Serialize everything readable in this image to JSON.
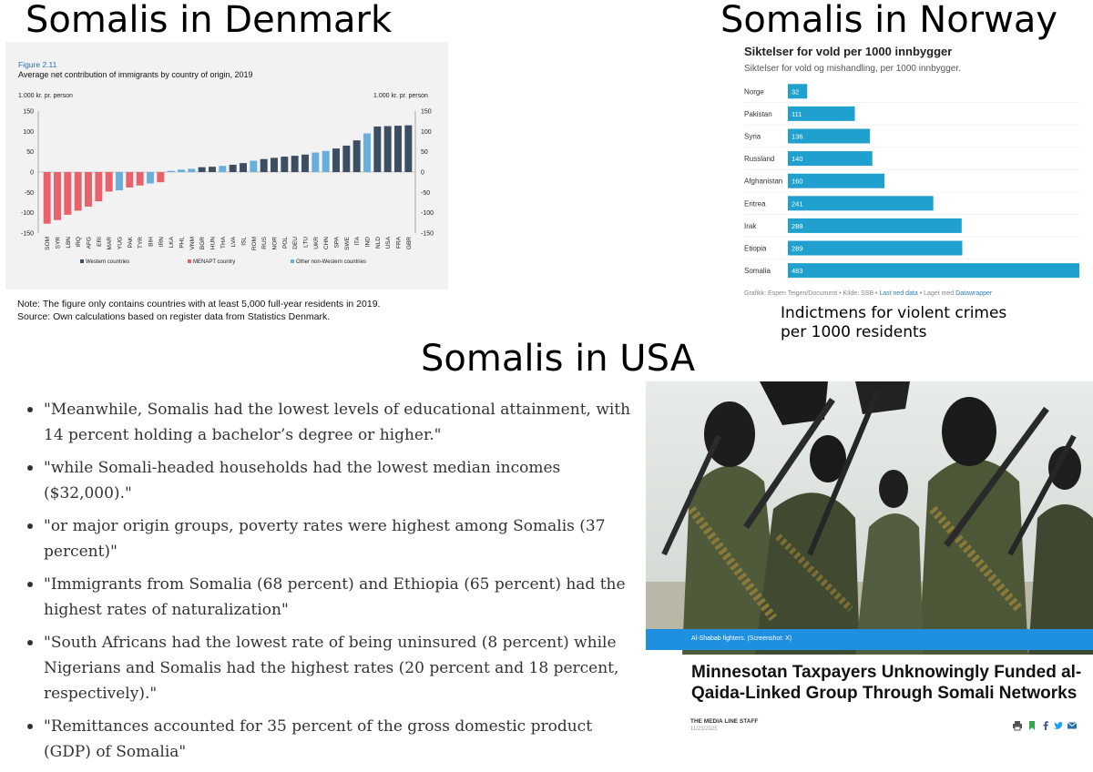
{
  "titles": {
    "denmark": "Somalis in Denmark",
    "norway": "Somalis in Norway",
    "usa": "Somalis in USA"
  },
  "denmark": {
    "figure_label": "Figure 2.11",
    "legend": [
      "Western countries",
      "MENAPT country",
      "Other non-Western countries"
    ],
    "note": "Note: The figure only contains countries with at least 5,000 full-year residents in 2019.",
    "source": "Source: Own calculations based on register data from Statistics Denmark."
  },
  "norway": {
    "credit_prefix": "Grafikk: Espen Teigen/Document • Kilde: SSB • ",
    "credit_link1": "Last ned data",
    "credit_mid": " • Laget med ",
    "credit_link2": "Datawrapper",
    "caption_line1": "Indictmens for violent crimes",
    "caption_line2": "per 1000 residents"
  },
  "usa": {
    "bullets": [
      "\"Meanwhile, Somalis had the lowest levels of educational attainment, with 14 percent holding a bachelor’s degree or higher.\"",
      "\"while Somali-headed households had the lowest median incomes ($32,000).\"",
      "\"or major origin groups, poverty rates were highest among Somalis (37 percent)\"",
      "\"Immigrants from Somalia (68 percent) and Ethiopia (65 percent) had the highest rates of naturalization\"",
      "\"South Africans had the lowest rate of being uninsured (8 percent) while Nigerians and Somalis had the highest rates (20 percent and 18 percent, respectively).\"",
      "\"Remittances accounted for 35 percent of the gross domestic product (GDP) of Somalia\""
    ]
  },
  "article": {
    "photo_caption": "Al-Shabab fighters. (Screenshot: X)",
    "headline": "Minnesotan Taxpayers Unknowingly Funded al-Qaida-Linked Group Through Somali Networks",
    "byline": "THE MEDIA LINE STAFF",
    "date": "11/23/2025",
    "share_icons": [
      "print-icon",
      "bookmark-icon",
      "facebook-icon",
      "twitter-icon",
      "email-icon"
    ]
  },
  "colors": {
    "western": "#3c4f62",
    "menapt": "#e8626b",
    "other_non_western": "#6aaedc",
    "norway_bar": "#1fa0cf"
  },
  "chart_data": [
    {
      "type": "bar",
      "title": "Average net contribution of immigrants by country of origin, 2019",
      "ylabel": "1.000 kr. pr. person",
      "ylim": [
        -150,
        150
      ],
      "yticks": [
        -150,
        -100,
        -50,
        0,
        50,
        100,
        150
      ],
      "grid": false,
      "legend_position": "bottom",
      "categories": [
        "SOM",
        "SYR",
        "LBN",
        "IRQ",
        "AFG",
        "ERI",
        "MAR",
        "YUG",
        "PAK",
        "TYR",
        "BIH",
        "IRN",
        "LKA",
        "PHL",
        "VNM",
        "BGR",
        "HUN",
        "THA",
        "LVA",
        "ISL",
        "ROM",
        "RUS",
        "NOR",
        "POL",
        "DEU",
        "LTU",
        "UKR",
        "CHN",
        "SPA",
        "SWE",
        "ITA",
        "IND",
        "NLD",
        "USA",
        "FRA",
        "GBR"
      ],
      "values": [
        -127,
        -118,
        -105,
        -95,
        -85,
        -72,
        -48,
        -45,
        -38,
        -33,
        -28,
        -25,
        3,
        6,
        8,
        12,
        13,
        15,
        18,
        22,
        28,
        32,
        35,
        38,
        40,
        43,
        48,
        52,
        58,
        65,
        78,
        95,
        112,
        113,
        114,
        115
      ],
      "groups": [
        "menapt",
        "menapt",
        "menapt",
        "menapt",
        "menapt",
        "menapt",
        "menapt",
        "other",
        "menapt",
        "menapt",
        "other",
        "menapt",
        "other",
        "other",
        "other",
        "western",
        "western",
        "other",
        "western",
        "western",
        "other",
        "western",
        "western",
        "western",
        "western",
        "western",
        "other",
        "other",
        "western",
        "western",
        "western",
        "other",
        "western",
        "western",
        "western",
        "western"
      ]
    },
    {
      "type": "bar",
      "orientation": "horizontal",
      "title": "Siktelser for vold per 1000 innbygger",
      "subtitle": "Siktelser for vold og mishandling, per 1000 innbygger.",
      "categories": [
        "Norge",
        "Pakistan",
        "Syria",
        "Russland",
        "Afghanistan",
        "Eritrea",
        "Irak",
        "Etiopia",
        "Somalia"
      ],
      "values": [
        32,
        111,
        136,
        140,
        160,
        241,
        288,
        289,
        483
      ],
      "xlim": [
        0,
        483
      ]
    }
  ]
}
